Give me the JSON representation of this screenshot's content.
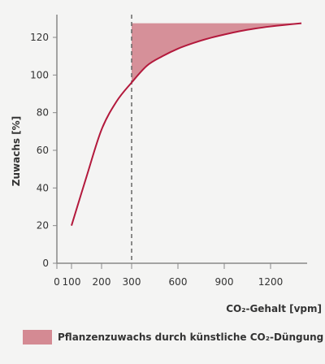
{
  "chart_data": {
    "type": "line",
    "xlabel": "CO₂-Gehalt [vpm]",
    "ylabel": "Zuwachs [%]",
    "xticks": [
      0,
      100,
      200,
      300,
      600,
      900,
      1200
    ],
    "yticks": [
      0,
      20,
      40,
      60,
      80,
      100,
      120
    ],
    "ylim": [
      0,
      130
    ],
    "x_scale": "piecewise-linear: 0–300 compressed, 300–1400 expanded",
    "series": [
      {
        "color": "#b3193c",
        "x": [
          100,
          150,
          200,
          250,
          300,
          400,
          500,
          600,
          700,
          800,
          900,
          1000,
          1100,
          1200,
          1300,
          1400
        ],
        "y": [
          20,
          46,
          71,
          86,
          96,
          105,
          110,
          114,
          117,
          119.5,
          121.5,
          123.3,
          124.7,
          125.8,
          126.7,
          127.5
        ]
      }
    ],
    "shaded_region": {
      "label": "Pflanzenzuwachs durch künstliche CO₂-Düngung",
      "color": "#d48a93",
      "x_start": 300,
      "upper_y": 127.5
    },
    "reference_line": {
      "x": 300,
      "style": "dashed"
    },
    "grid": false,
    "legend_position": "bottom-left"
  }
}
